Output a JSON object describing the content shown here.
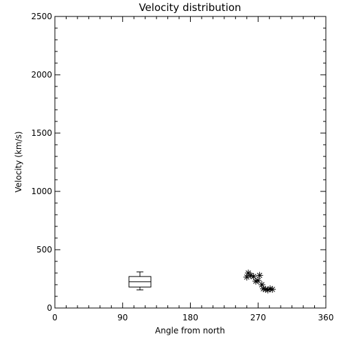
{
  "chart_data": {
    "type": "scatter",
    "title": "Velocity distribution",
    "xlabel": "Angle from north",
    "ylabel": "Velocity (km/s)",
    "xlim": [
      0,
      360
    ],
    "ylim": [
      0,
      2500
    ],
    "xticks": [
      0,
      90,
      180,
      270,
      360
    ],
    "yticks": [
      0,
      500,
      1000,
      1500,
      2000,
      2500
    ],
    "grid": false,
    "box": {
      "x": 113,
      "min": 155,
      "q1": 180,
      "median": 225,
      "q3": 270,
      "max": 310
    },
    "points": [
      {
        "x": 255,
        "y": 265
      },
      {
        "x": 257,
        "y": 300
      },
      {
        "x": 260,
        "y": 280
      },
      {
        "x": 264,
        "y": 270
      },
      {
        "x": 267,
        "y": 230
      },
      {
        "x": 270,
        "y": 235
      },
      {
        "x": 272,
        "y": 280
      },
      {
        "x": 275,
        "y": 200
      },
      {
        "x": 277,
        "y": 165
      },
      {
        "x": 280,
        "y": 160
      },
      {
        "x": 283,
        "y": 155
      },
      {
        "x": 286,
        "y": 165
      },
      {
        "x": 289,
        "y": 160
      }
    ]
  }
}
